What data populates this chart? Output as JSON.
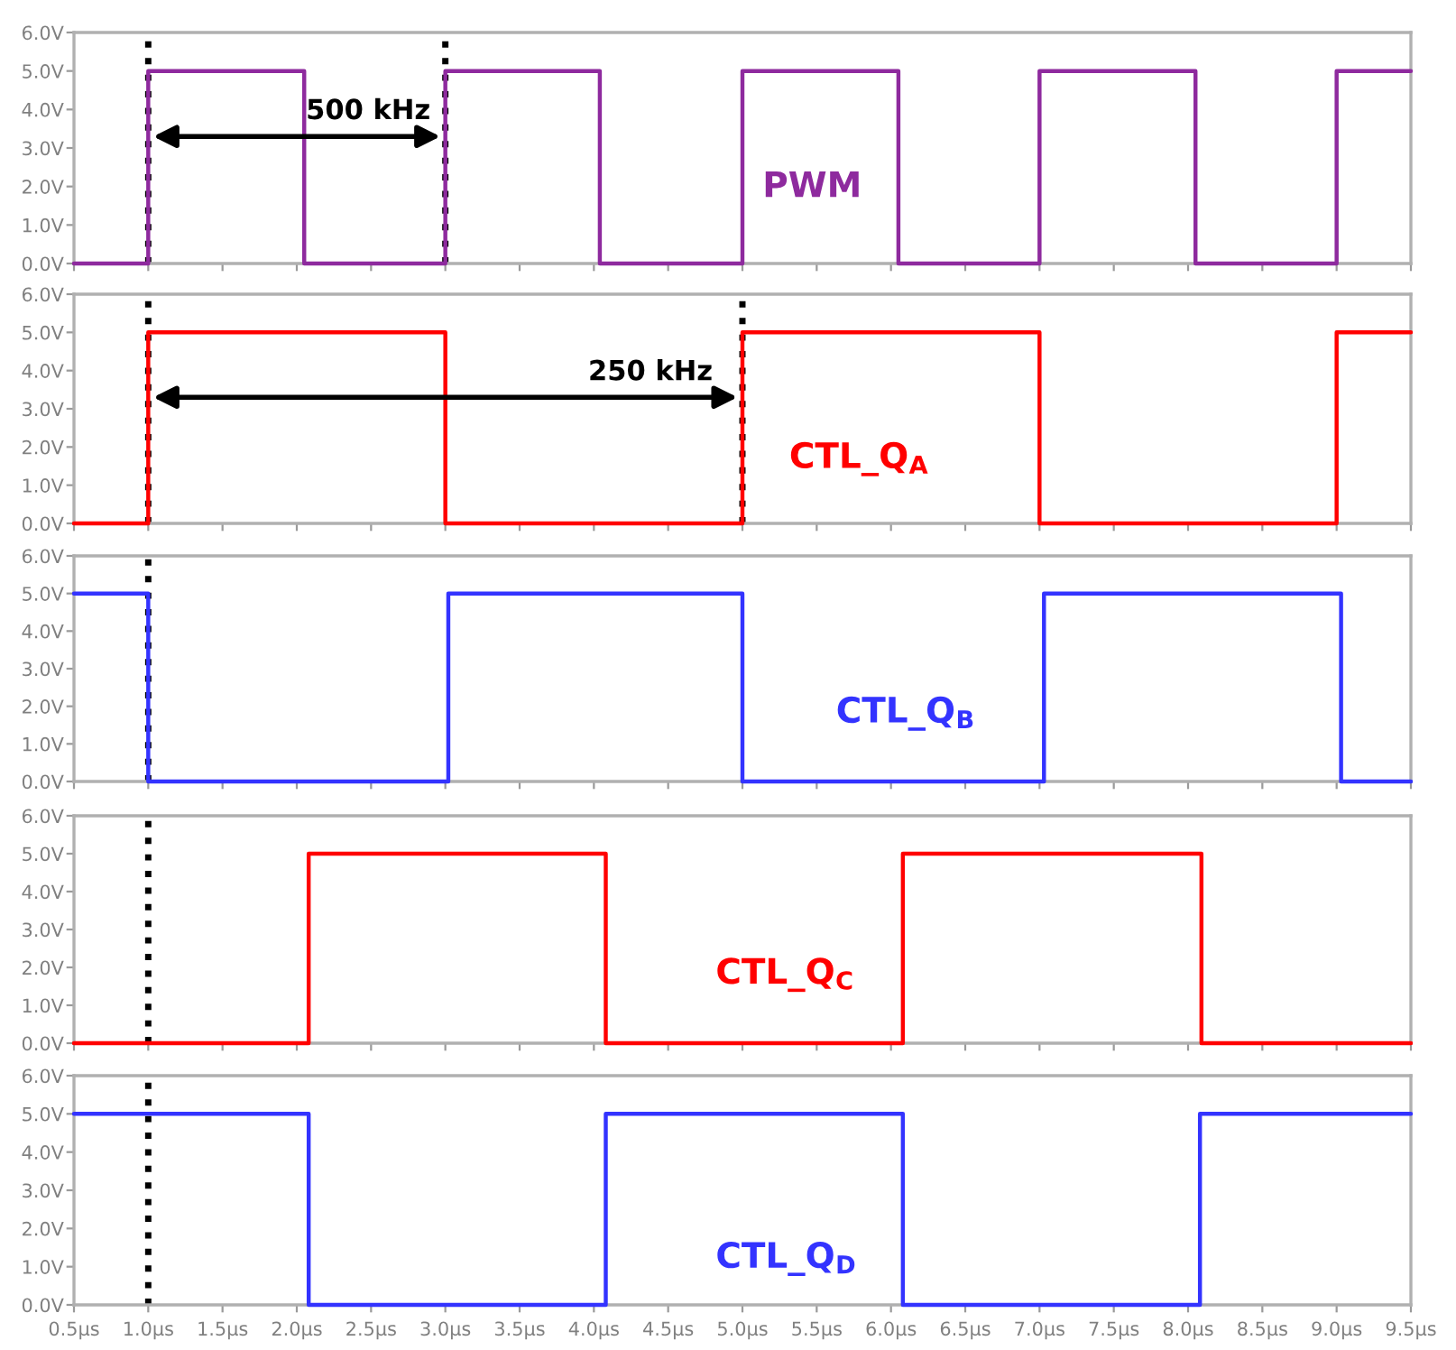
{
  "chart_data": [
    {
      "type": "step",
      "x": [
        0.5,
        1.0,
        2.05,
        3.0,
        4.04,
        5.0,
        6.05,
        7.0,
        8.05,
        9.0,
        9.5
      ],
      "series": [
        {
          "name": "PWM",
          "color": "#8e2a9e",
          "values": [
            0,
            5,
            0,
            5,
            0,
            5,
            0,
            5,
            0,
            5,
            5
          ]
        }
      ],
      "xlim": [
        0.5,
        9.5
      ],
      "ylim": [
        0,
        6
      ],
      "yticks": [
        {
          "value": 0,
          "label": "0.0V"
        },
        {
          "value": 1,
          "label": "1.0V"
        },
        {
          "value": 2,
          "label": "2.0V"
        },
        {
          "value": 3,
          "label": "3.0V"
        },
        {
          "value": 4,
          "label": "4.0V"
        },
        {
          "value": 5,
          "label": "5.0V"
        },
        {
          "value": 6,
          "label": "6.0V"
        }
      ],
      "xticks": [
        {
          "value": 0.5,
          "label": null
        },
        {
          "value": 1.0,
          "label": null
        },
        {
          "value": 1.5,
          "label": null
        },
        {
          "value": 2.0,
          "label": null
        },
        {
          "value": 2.5,
          "label": null
        },
        {
          "value": 3.0,
          "label": null
        },
        {
          "value": 3.5,
          "label": null
        },
        {
          "value": 4.0,
          "label": null
        },
        {
          "value": 4.5,
          "label": null
        },
        {
          "value": 5.0,
          "label": null
        },
        {
          "value": 5.5,
          "label": null
        },
        {
          "value": 6.0,
          "label": null
        },
        {
          "value": 6.5,
          "label": null
        },
        {
          "value": 7.0,
          "label": null
        },
        {
          "value": 7.5,
          "label": null
        },
        {
          "value": 8.0,
          "label": null
        },
        {
          "value": 8.5,
          "label": null
        },
        {
          "value": 9.0,
          "label": null
        },
        {
          "value": 9.5,
          "label": null
        }
      ],
      "tick_labels": "y",
      "grid": false,
      "line_style": "solid",
      "ref_lines": [
        {
          "axis": "x",
          "value": 1.0,
          "color": "#000000",
          "line_style": "dotted"
        },
        {
          "axis": "x",
          "value": 3.0,
          "color": "#000000",
          "line_style": "dotted"
        }
      ],
      "annotations": [
        "500 kHz"
      ]
    },
    {
      "type": "step",
      "x": [
        0.5,
        1.0,
        3.0,
        5.0,
        7.0,
        9.0,
        9.5
      ],
      "series": [
        {
          "name": "CTL_Q$_{A}$",
          "color": "#ff0000",
          "values": [
            0,
            5,
            0,
            5,
            0,
            5,
            5
          ]
        }
      ],
      "xlim": [
        0.5,
        9.5
      ],
      "ylim": [
        0,
        6
      ],
      "yticks": [
        {
          "value": 0,
          "label": "0.0V"
        },
        {
          "value": 1,
          "label": "1.0V"
        },
        {
          "value": 2,
          "label": "2.0V"
        },
        {
          "value": 3,
          "label": "3.0V"
        },
        {
          "value": 4,
          "label": "4.0V"
        },
        {
          "value": 5,
          "label": "5.0V"
        },
        {
          "value": 6,
          "label": "6.0V"
        }
      ],
      "xticks": [
        {
          "value": 0.5,
          "label": null
        },
        {
          "value": 1.0,
          "label": null
        },
        {
          "value": 1.5,
          "label": null
        },
        {
          "value": 2.0,
          "label": null
        },
        {
          "value": 2.5,
          "label": null
        },
        {
          "value": 3.0,
          "label": null
        },
        {
          "value": 3.5,
          "label": null
        },
        {
          "value": 4.0,
          "label": null
        },
        {
          "value": 4.5,
          "label": null
        },
        {
          "value": 5.0,
          "label": null
        },
        {
          "value": 5.5,
          "label": null
        },
        {
          "value": 6.0,
          "label": null
        },
        {
          "value": 6.5,
          "label": null
        },
        {
          "value": 7.0,
          "label": null
        },
        {
          "value": 7.5,
          "label": null
        },
        {
          "value": 8.0,
          "label": null
        },
        {
          "value": 8.5,
          "label": null
        },
        {
          "value": 9.0,
          "label": null
        },
        {
          "value": 9.5,
          "label": null
        }
      ],
      "tick_labels": "y",
      "grid": false,
      "line_style": "solid",
      "ref_lines": [
        {
          "axis": "x",
          "value": 1.0,
          "color": "#000000",
          "line_style": "dotted"
        },
        {
          "axis": "x",
          "value": 5.0,
          "color": "#000000",
          "line_style": "dotted"
        }
      ],
      "annotations": [
        "250 kHz"
      ]
    },
    {
      "type": "step",
      "x": [
        0.5,
        1.0,
        3.02,
        5.0,
        7.03,
        9.03,
        9.5
      ],
      "series": [
        {
          "name": "CTL_Q$_{B}$",
          "color": "#3333ff",
          "values": [
            5,
            0,
            5,
            0,
            5,
            0,
            0
          ]
        }
      ],
      "xlim": [
        0.5,
        9.5
      ],
      "ylim": [
        0,
        6
      ],
      "yticks": [
        {
          "value": 0,
          "label": "0.0V"
        },
        {
          "value": 1,
          "label": "1.0V"
        },
        {
          "value": 2,
          "label": "2.0V"
        },
        {
          "value": 3,
          "label": "3.0V"
        },
        {
          "value": 4,
          "label": "4.0V"
        },
        {
          "value": 5,
          "label": "5.0V"
        },
        {
          "value": 6,
          "label": "6.0V"
        }
      ],
      "xticks": [
        {
          "value": 0.5,
          "label": null
        },
        {
          "value": 1.0,
          "label": null
        },
        {
          "value": 1.5,
          "label": null
        },
        {
          "value": 2.0,
          "label": null
        },
        {
          "value": 2.5,
          "label": null
        },
        {
          "value": 3.0,
          "label": null
        },
        {
          "value": 3.5,
          "label": null
        },
        {
          "value": 4.0,
          "label": null
        },
        {
          "value": 4.5,
          "label": null
        },
        {
          "value": 5.0,
          "label": null
        },
        {
          "value": 5.5,
          "label": null
        },
        {
          "value": 6.0,
          "label": null
        },
        {
          "value": 6.5,
          "label": null
        },
        {
          "value": 7.0,
          "label": null
        },
        {
          "value": 7.5,
          "label": null
        },
        {
          "value": 8.0,
          "label": null
        },
        {
          "value": 8.5,
          "label": null
        },
        {
          "value": 9.0,
          "label": null
        },
        {
          "value": 9.5,
          "label": null
        }
      ],
      "tick_labels": "y",
      "grid": false,
      "line_style": "solid",
      "ref_lines": [
        {
          "axis": "x",
          "value": 1.0,
          "color": "#000000",
          "line_style": "dotted"
        }
      ]
    },
    {
      "type": "step",
      "x": [
        0.5,
        2.08,
        4.08,
        6.08,
        8.09,
        9.5
      ],
      "series": [
        {
          "name": "CTL_Q$_{C}$",
          "color": "#ff0000",
          "values": [
            0,
            5,
            0,
            5,
            0,
            0
          ]
        }
      ],
      "xlim": [
        0.5,
        9.5
      ],
      "ylim": [
        0,
        6
      ],
      "yticks": [
        {
          "value": 0,
          "label": "0.0V"
        },
        {
          "value": 1,
          "label": "1.0V"
        },
        {
          "value": 2,
          "label": "2.0V"
        },
        {
          "value": 3,
          "label": "3.0V"
        },
        {
          "value": 4,
          "label": "4.0V"
        },
        {
          "value": 5,
          "label": "5.0V"
        },
        {
          "value": 6,
          "label": "6.0V"
        }
      ],
      "xticks": [
        {
          "value": 0.5,
          "label": null
        },
        {
          "value": 1.0,
          "label": null
        },
        {
          "value": 1.5,
          "label": null
        },
        {
          "value": 2.0,
          "label": null
        },
        {
          "value": 2.5,
          "label": null
        },
        {
          "value": 3.0,
          "label": null
        },
        {
          "value": 3.5,
          "label": null
        },
        {
          "value": 4.0,
          "label": null
        },
        {
          "value": 4.5,
          "label": null
        },
        {
          "value": 5.0,
          "label": null
        },
        {
          "value": 5.5,
          "label": null
        },
        {
          "value": 6.0,
          "label": null
        },
        {
          "value": 6.5,
          "label": null
        },
        {
          "value": 7.0,
          "label": null
        },
        {
          "value": 7.5,
          "label": null
        },
        {
          "value": 8.0,
          "label": null
        },
        {
          "value": 8.5,
          "label": null
        },
        {
          "value": 9.0,
          "label": null
        },
        {
          "value": 9.5,
          "label": null
        }
      ],
      "tick_labels": "y",
      "grid": false,
      "line_style": "solid",
      "ref_lines": [
        {
          "axis": "x",
          "value": 1.0,
          "color": "#000000",
          "line_style": "dotted"
        }
      ]
    },
    {
      "type": "step",
      "x": [
        0.5,
        2.08,
        4.08,
        6.08,
        8.08,
        9.5
      ],
      "series": [
        {
          "name": "CTL_Q$_{D}$",
          "color": "#3333ff",
          "values": [
            5,
            0,
            5,
            0,
            5,
            5
          ]
        }
      ],
      "xlim": [
        0.5,
        9.5
      ],
      "ylim": [
        0,
        6
      ],
      "yticks": [
        {
          "value": 0,
          "label": "0.0V"
        },
        {
          "value": 1,
          "label": "1.0V"
        },
        {
          "value": 2,
          "label": "2.0V"
        },
        {
          "value": 3,
          "label": "3.0V"
        },
        {
          "value": 4,
          "label": "4.0V"
        },
        {
          "value": 5,
          "label": "5.0V"
        },
        {
          "value": 6,
          "label": "6.0V"
        }
      ],
      "xticks": [
        {
          "value": 0.5,
          "label": "0.5µs"
        },
        {
          "value": 1.0,
          "label": "1.0µs"
        },
        {
          "value": 1.5,
          "label": "1.5µs"
        },
        {
          "value": 2.0,
          "label": "2.0µs"
        },
        {
          "value": 2.5,
          "label": "2.5µs"
        },
        {
          "value": 3.0,
          "label": "3.0µs"
        },
        {
          "value": 3.5,
          "label": "3.5µs"
        },
        {
          "value": 4.0,
          "label": "4.0µs"
        },
        {
          "value": 4.5,
          "label": "4.5µs"
        },
        {
          "value": 5.0,
          "label": "5.0µs"
        },
        {
          "value": 5.5,
          "label": "5.5µs"
        },
        {
          "value": 6.0,
          "label": "6.0µs"
        },
        {
          "value": 6.5,
          "label": "6.5µs"
        },
        {
          "value": 7.0,
          "label": "7.0µs"
        },
        {
          "value": 7.5,
          "label": "7.5µs"
        },
        {
          "value": 8.0,
          "label": "8.0µs"
        },
        {
          "value": 8.5,
          "label": "8.5µs"
        },
        {
          "value": 9.0,
          "label": "9.0µs"
        },
        {
          "value": 9.5,
          "label": "9.5µs"
        }
      ],
      "grid": false,
      "line_style": "solid",
      "ref_lines": [
        {
          "axis": "x",
          "value": 1.0,
          "color": "#000000",
          "line_style": "dotted"
        }
      ]
    }
  ]
}
